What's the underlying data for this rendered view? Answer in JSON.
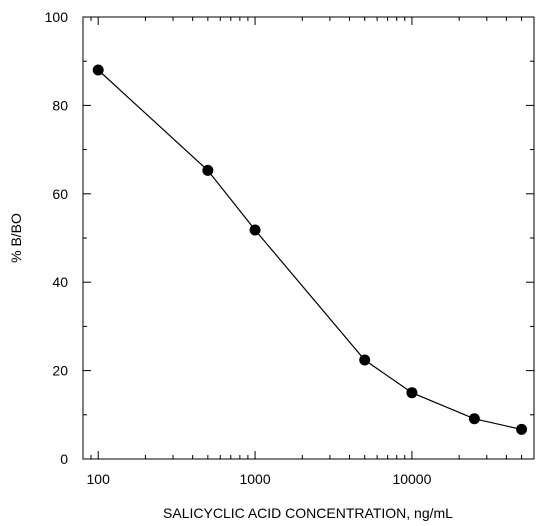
{
  "chart_data": {
    "type": "scatter",
    "title": "",
    "xlabel": "SALICYCLIC ACID CONCENTRATION, ng/mL",
    "ylabel": "% B/BO",
    "x_scale": "log",
    "xlim": [
      80,
      60000
    ],
    "ylim": [
      0,
      100
    ],
    "x_ticks": [
      100,
      1000,
      10000
    ],
    "x_tick_labels": [
      "100",
      "1000",
      "10000"
    ],
    "y_ticks": [
      0,
      20,
      40,
      60,
      80,
      100
    ],
    "y_tick_labels": [
      "0",
      "20",
      "40",
      "60",
      "80",
      "100"
    ],
    "grid": false,
    "legend": "none",
    "line_connected": true,
    "colors": {
      "line": "#000000",
      "marker": "#000000"
    },
    "series": [
      {
        "x": [
          100,
          500,
          1000,
          5000,
          10000,
          25000,
          50000
        ],
        "values": [
          88,
          65.3,
          51.8,
          22.4,
          15,
          9.1,
          6.7
        ]
      }
    ]
  }
}
